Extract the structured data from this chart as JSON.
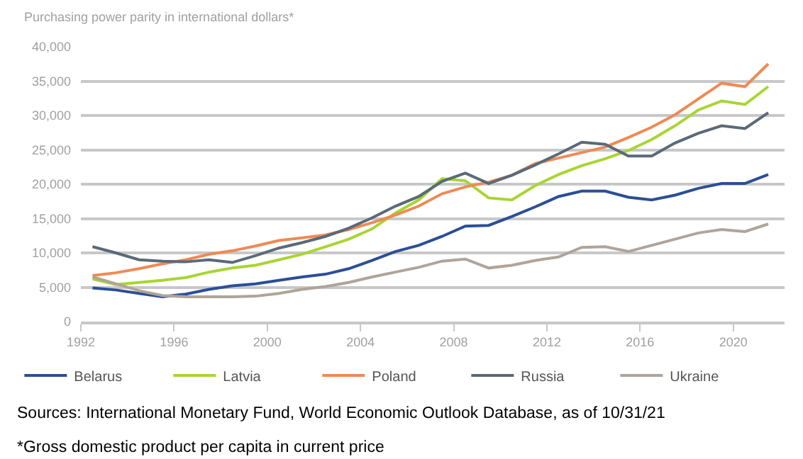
{
  "chart_data": {
    "type": "line",
    "ylabel": "Purchasing power parity in international dollars*",
    "x": [
      1992.5,
      1993.5,
      1994.5,
      1995.5,
      1996.5,
      1997.5,
      1998.5,
      1999.5,
      2000.5,
      2001.5,
      2002.5,
      2003.5,
      2004.5,
      2005.5,
      2006.5,
      2007.5,
      2008.5,
      2009.5,
      2010.5,
      2011.5,
      2012.5,
      2013.5,
      2014.5,
      2015.5,
      2016.5,
      2017.5,
      2018.5,
      2019.5,
      2020.5,
      2021.5
    ],
    "series": [
      {
        "name": "Belarus",
        "color": "#2b4f96",
        "values": [
          4900,
          4600,
          4100,
          3600,
          4000,
          4700,
          5200,
          5500,
          6000,
          6500,
          6900,
          7700,
          8900,
          10200,
          11100,
          12400,
          13900,
          14000,
          15300,
          16700,
          18200,
          19000,
          19000,
          18100,
          17700,
          18400,
          19400,
          20100,
          20100,
          21400
        ]
      },
      {
        "name": "Latvia",
        "color": "#a8d532",
        "values": [
          6200,
          5400,
          5700,
          6000,
          6400,
          7200,
          7800,
          8200,
          9000,
          9800,
          10900,
          12000,
          13500,
          15800,
          17700,
          20800,
          20500,
          18000,
          17700,
          19800,
          21400,
          22700,
          23700,
          24900,
          26500,
          28500,
          30800,
          32100,
          31600,
          34200
        ]
      },
      {
        "name": "Poland",
        "color": "#ee8a55",
        "values": [
          6700,
          7100,
          7700,
          8400,
          9000,
          9800,
          10300,
          11000,
          11800,
          12200,
          12600,
          13400,
          14400,
          15500,
          16800,
          18600,
          19600,
          20300,
          21300,
          23000,
          23800,
          24600,
          25400,
          26800,
          28300,
          30100,
          32400,
          34700,
          34200,
          37500
        ]
      },
      {
        "name": "Russia",
        "color": "#5a6a78",
        "values": [
          10900,
          10000,
          9000,
          8800,
          8700,
          9000,
          8600,
          9600,
          10700,
          11500,
          12400,
          13600,
          15100,
          16800,
          18200,
          20400,
          21600,
          20100,
          21300,
          22800,
          24400,
          26100,
          25800,
          24100,
          24100,
          26000,
          27400,
          28500,
          28100,
          30400
        ]
      },
      {
        "name": "Ukraine",
        "color": "#b0a49a",
        "values": [
          6500,
          5500,
          4500,
          3800,
          3600,
          3600,
          3600,
          3700,
          4100,
          4700,
          5100,
          5700,
          6500,
          7200,
          7900,
          8800,
          9100,
          7800,
          8200,
          8900,
          9400,
          10800,
          10900,
          10200,
          11100,
          12000,
          12900,
          13400,
          13100,
          14200
        ]
      }
    ],
    "xlim": [
      1992,
      2022.2
    ],
    "xticks": [
      1992,
      1996,
      2000,
      2004,
      2008,
      2012,
      2016,
      2020
    ],
    "ylim": [
      0,
      40000
    ],
    "yticks": [
      {
        "value": 0,
        "label": "0"
      },
      {
        "value": 5000,
        "label": "5,000"
      },
      {
        "value": 10000,
        "label": "10,000"
      },
      {
        "value": 15000,
        "label": "15,000"
      },
      {
        "value": 20000,
        "label": "20,000"
      },
      {
        "value": 25000,
        "label": "25,000"
      },
      {
        "value": 30000,
        "label": "30,000"
      },
      {
        "value": 35000,
        "label": "35,000"
      },
      {
        "value": 40000,
        "label": "40,000"
      }
    ],
    "grid": "y",
    "legend": "bottom",
    "marker": "none",
    "line_style": "solid",
    "annotations": [
      "Sources: International Monetary Fund, World Economic Outlook Database, as of 10/31/21",
      "*Gross domestic product per capita in current price"
    ]
  }
}
